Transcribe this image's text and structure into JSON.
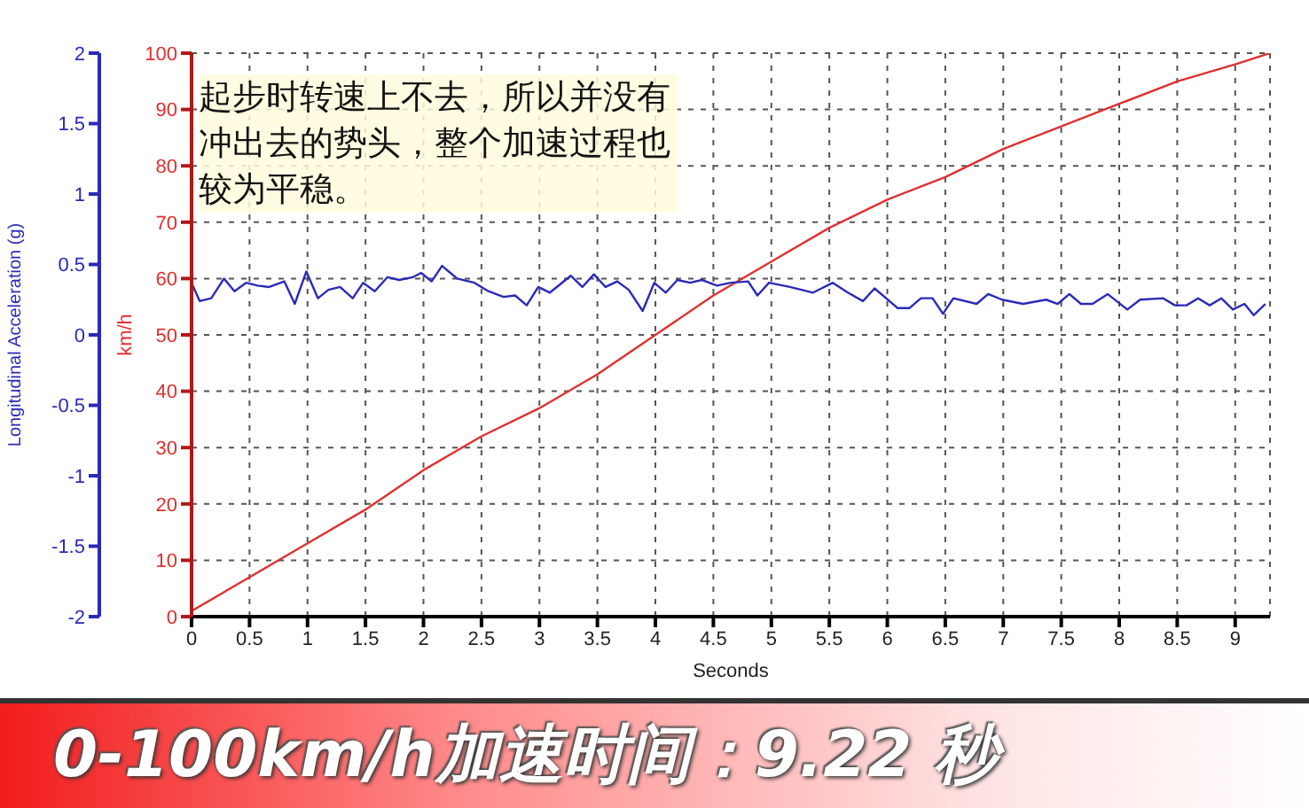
{
  "chart_data": {
    "type": "line",
    "title": "0-100km/h加速时间：9.22 秒",
    "xlabel": "Seconds",
    "ylabel": "km/h",
    "y2label": "Longitudinal Acceleration (g)",
    "annotations": [
      "起步时转速上不去，所以并没有冲出去的势头，整个加速过程也较为平稳。"
    ],
    "xlim": [
      0,
      9.3
    ],
    "xticks": [
      0,
      0.5,
      1,
      1.5,
      2,
      2.5,
      3,
      3.5,
      4,
      4.5,
      5,
      5.5,
      6,
      6.5,
      7,
      7.5,
      8,
      8.5,
      9
    ],
    "ylim": [
      0,
      100
    ],
    "yticks": [
      0,
      10,
      20,
      30,
      40,
      50,
      60,
      70,
      80,
      90,
      100
    ],
    "y2lim": [
      -2,
      2
    ],
    "y2ticks": [
      -2,
      -1.5,
      -1,
      -0.5,
      0,
      0.5,
      1,
      1.5,
      2
    ],
    "grid": true,
    "marker": "none",
    "line_style": "solid",
    "series": [
      {
        "color": "#e03030",
        "x": [
          0,
          0.5,
          1,
          1.5,
          2,
          2.5,
          3,
          3.5,
          4,
          4.5,
          5,
          5.5,
          6,
          6.5,
          7,
          7.5,
          8,
          8.5,
          9,
          9.3
        ],
        "values": [
          1,
          7,
          13,
          19,
          26,
          32,
          37,
          43,
          50,
          57,
          63,
          69,
          74,
          78,
          83,
          87,
          91,
          95,
          98,
          100
        ]
      },
      {
        "color": "#2a2ab8",
        "axis": "y2",
        "x": [
          0,
          0.07,
          0.17,
          0.28,
          0.37,
          0.47,
          0.57,
          0.67,
          0.8,
          0.89,
          0.99,
          1.09,
          1.18,
          1.28,
          1.39,
          1.48,
          1.58,
          1.69,
          1.79,
          1.91,
          1.98,
          2.07,
          2.16,
          2.29,
          2.44,
          2.56,
          2.69,
          2.79,
          2.89,
          2.99,
          3.09,
          3.27,
          3.37,
          3.47,
          3.57,
          3.67,
          3.77,
          3.89,
          3.99,
          4.09,
          4.19,
          4.3,
          4.4,
          4.53,
          4.65,
          4.8,
          4.88,
          4.98,
          5.16,
          5.36,
          5.53,
          5.66,
          5.79,
          5.89,
          6.09,
          6.19,
          6.29,
          6.39,
          6.48,
          6.57,
          6.77,
          6.87,
          6.99,
          7.17,
          7.37,
          7.47,
          7.57,
          7.67,
          7.77,
          7.9,
          8.07,
          8.18,
          8.38,
          8.48,
          8.58,
          8.68,
          8.78,
          8.88,
          8.98,
          9.08,
          9.16,
          9.26
        ],
        "values": [
          0.37,
          0.24,
          0.26,
          0.4,
          0.31,
          0.37,
          0.35,
          0.34,
          0.38,
          0.22,
          0.45,
          0.26,
          0.32,
          0.34,
          0.26,
          0.37,
          0.31,
          0.41,
          0.39,
          0.41,
          0.44,
          0.38,
          0.49,
          0.4,
          0.37,
          0.31,
          0.27,
          0.28,
          0.21,
          0.34,
          0.3,
          0.42,
          0.34,
          0.43,
          0.34,
          0.38,
          0.32,
          0.17,
          0.37,
          0.3,
          0.39,
          0.37,
          0.39,
          0.35,
          0.37,
          0.38,
          0.28,
          0.37,
          0.34,
          0.3,
          0.37,
          0.3,
          0.24,
          0.33,
          0.19,
          0.19,
          0.26,
          0.26,
          0.15,
          0.26,
          0.22,
          0.29,
          0.25,
          0.22,
          0.25,
          0.22,
          0.29,
          0.22,
          0.22,
          0.29,
          0.18,
          0.25,
          0.26,
          0.21,
          0.21,
          0.26,
          0.21,
          0.26,
          0.18,
          0.22,
          0.14,
          0.22
        ]
      }
    ]
  }
}
